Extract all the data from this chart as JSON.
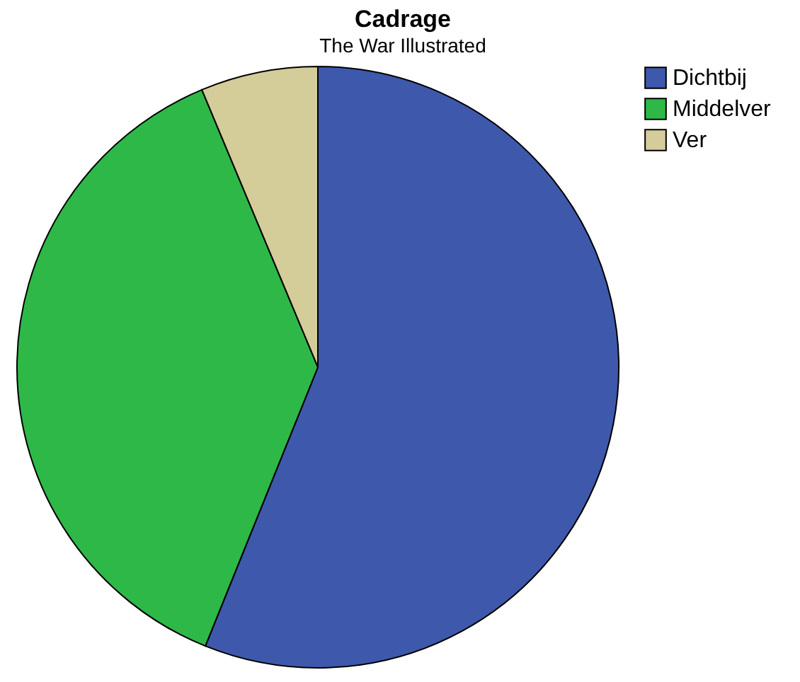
{
  "chart_data": {
    "type": "pie",
    "title": "Cadrage",
    "subtitle": "The War Illustrated",
    "categories": [
      "Dichtbij",
      "Middelver",
      "Ver"
    ],
    "values": [
      56.1,
      37.6,
      6.3
    ],
    "colors": [
      "#3e58ac",
      "#2eb848",
      "#d4cc99"
    ],
    "legend": "top right"
  }
}
